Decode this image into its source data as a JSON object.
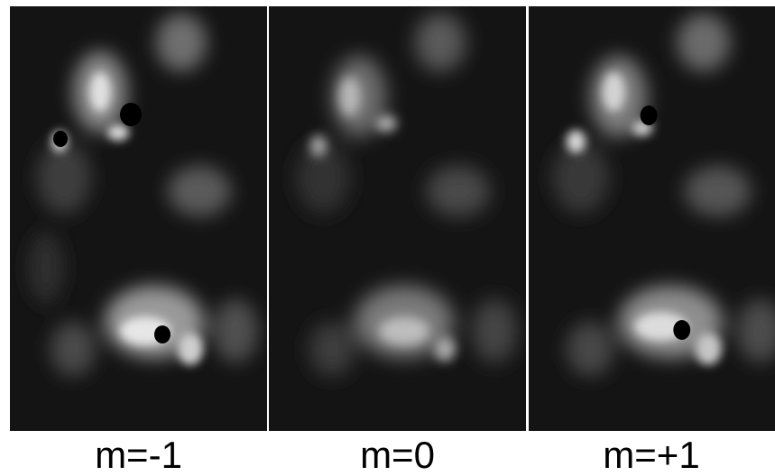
{
  "panels": [
    {
      "label": "m=-1",
      "spots": 3
    },
    {
      "label": "m=0",
      "spots": 0
    },
    {
      "label": "m=+1",
      "spots": 2
    }
  ],
  "colors": {
    "background": "#ffffff",
    "image_base": "#141414",
    "highlight": "#e6e6e6",
    "spot": "#000000",
    "label": "#000000"
  }
}
